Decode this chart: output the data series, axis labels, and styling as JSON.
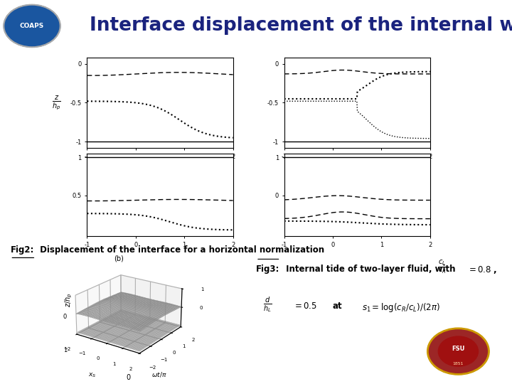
{
  "title": "Interface displacement of the internal waves",
  "title_color": "#1a237e",
  "title_fontsize": 19,
  "header_bar_color": "#4472c4",
  "background_color": "#ffffff",
  "fig2_label": "Fig2:",
  "fig2_text": " Displacement of the interface for a horizontal normalization",
  "fig3_label": "Fig3:",
  "fig3_text": " Internal tide of two-layer fluid, with",
  "ylabel_math": "z/h_p"
}
